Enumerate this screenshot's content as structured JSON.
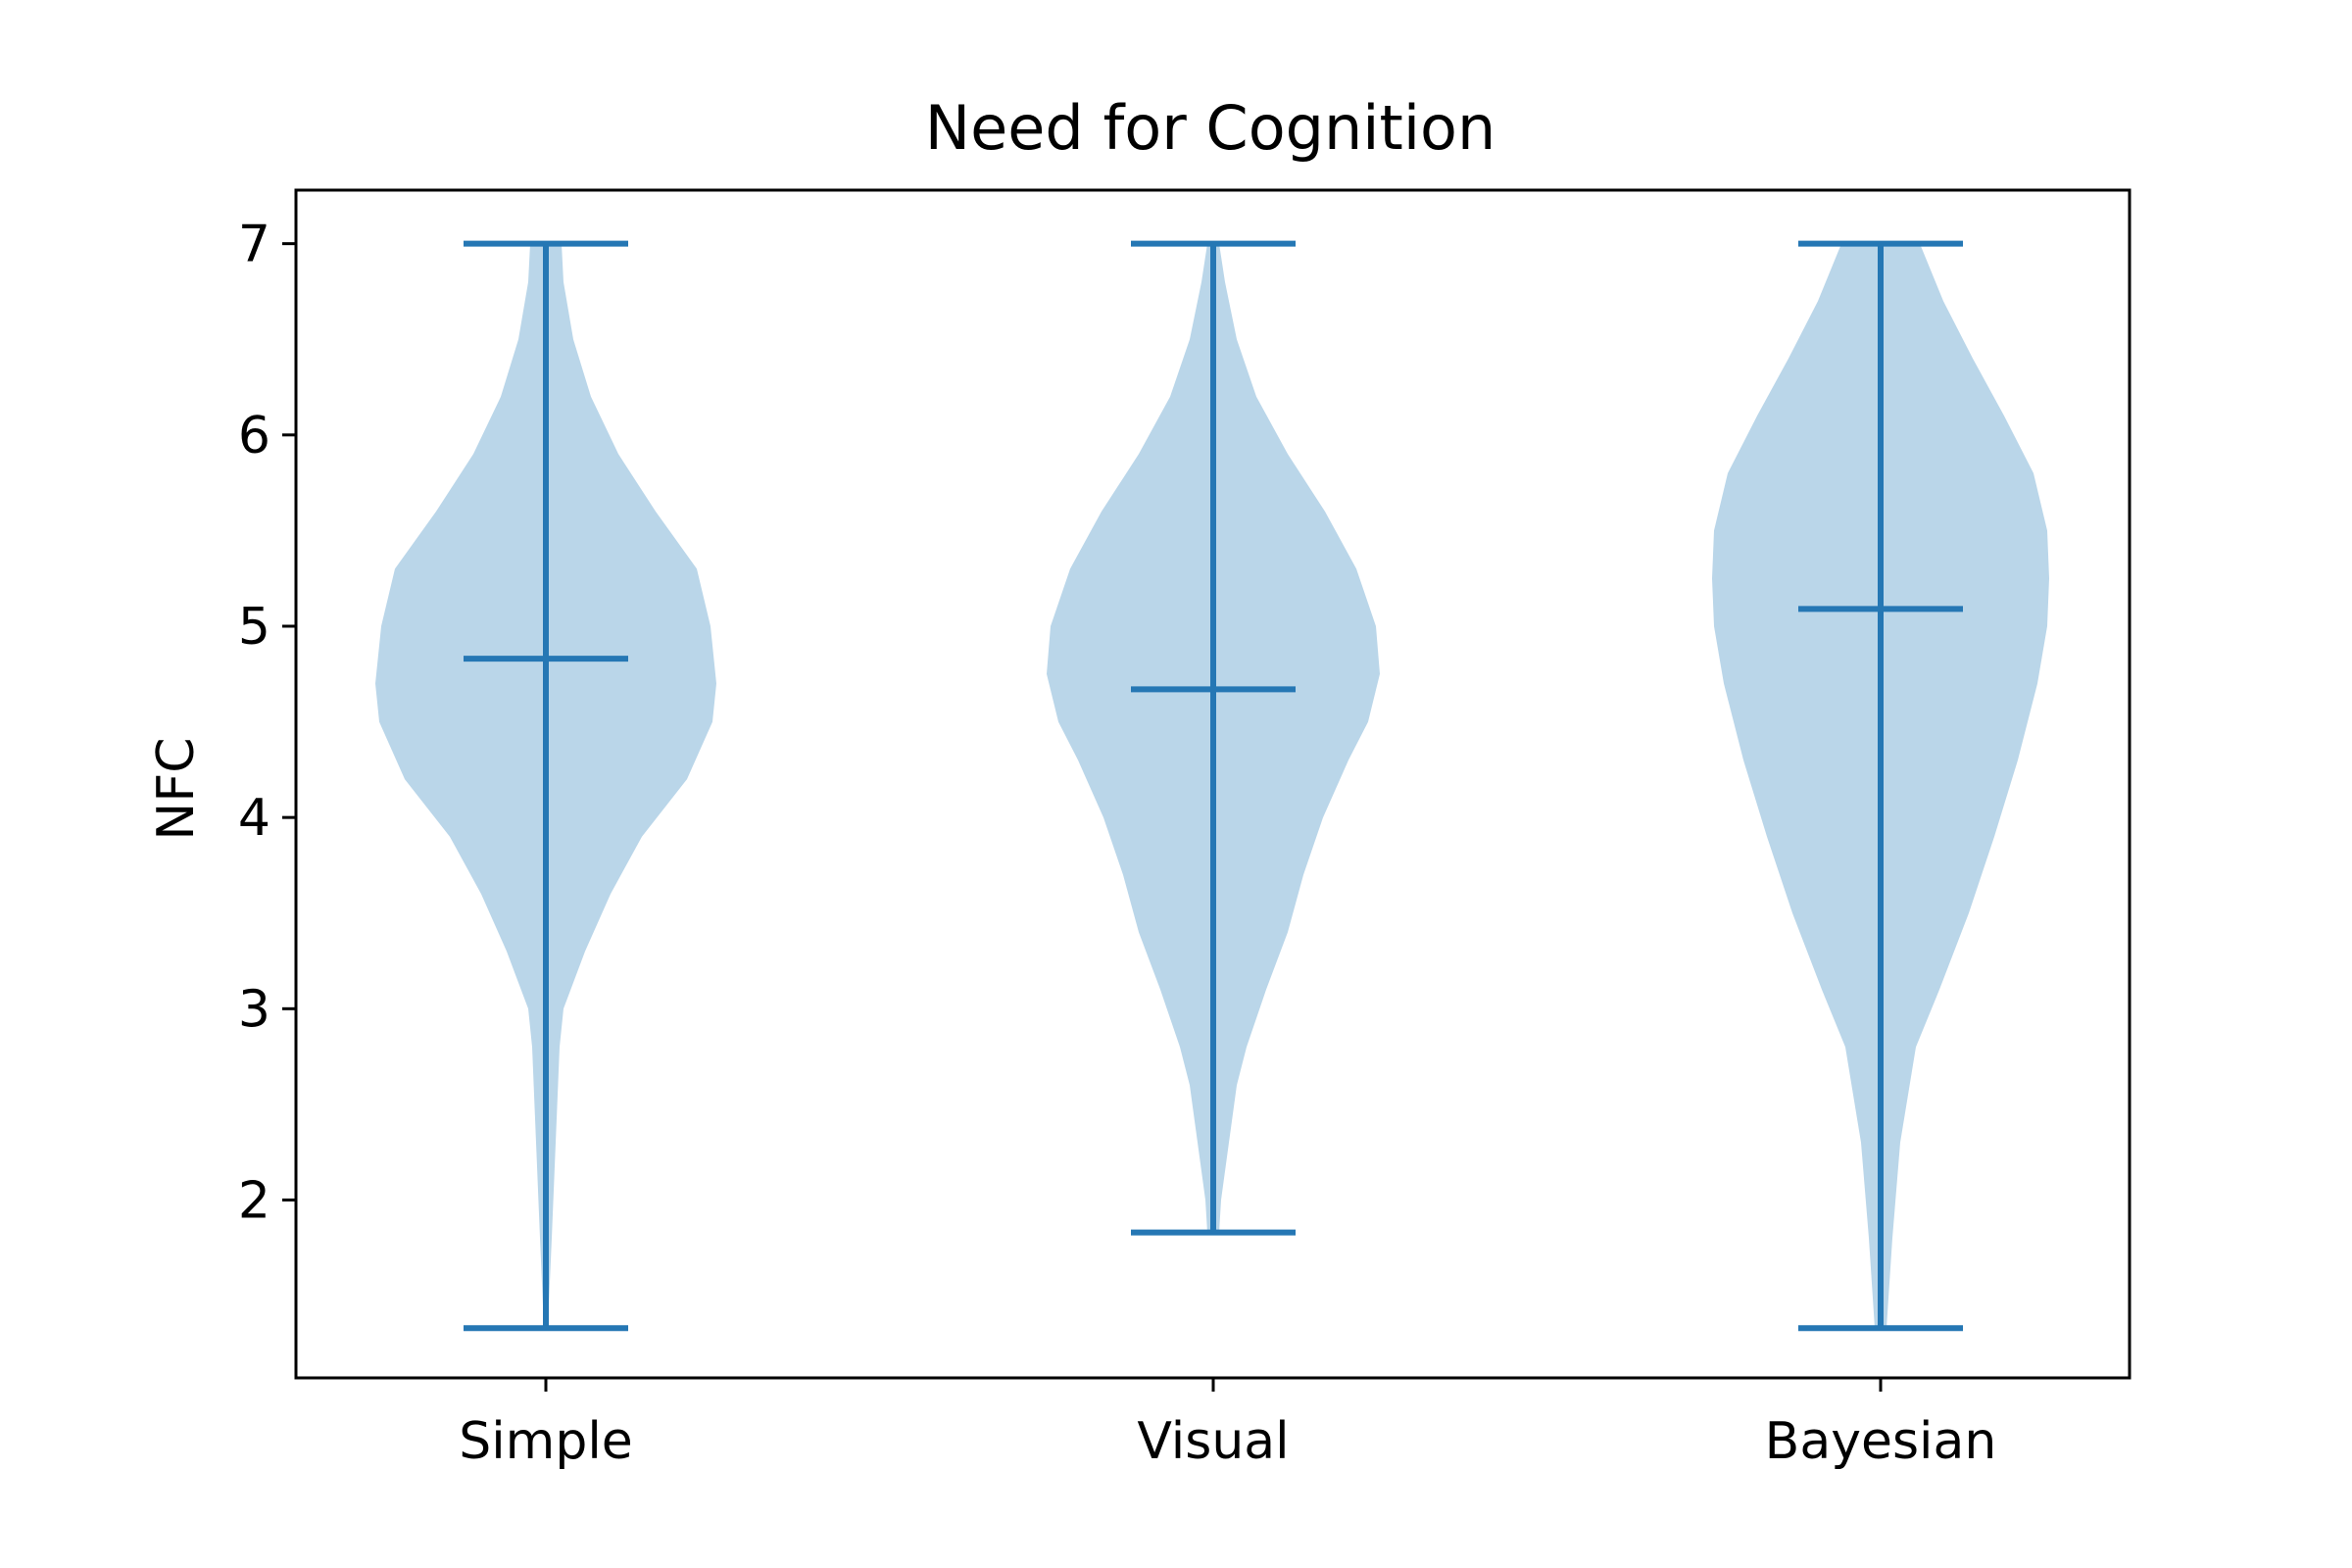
{
  "chart_data": {
    "type": "violin",
    "title": "Need for Cognition",
    "xlabel": "",
    "ylabel": "NFC",
    "categories": [
      "Simple",
      "Visual",
      "Bayesian"
    ],
    "ylim": [
      1.07,
      7.28
    ],
    "yticks": [
      2,
      3,
      4,
      5,
      6,
      7
    ],
    "grid": false,
    "colors": {
      "fill": "#bad6e9",
      "line": "#2577b4",
      "axis": "#000000"
    },
    "series": [
      {
        "category": "Simple",
        "min": 1.33,
        "max": 7.0,
        "mean": 4.83,
        "density": [
          [
            1.33,
            0.01
          ],
          [
            1.8,
            0.03
          ],
          [
            2.3,
            0.05
          ],
          [
            2.8,
            0.07
          ],
          [
            3.0,
            0.09
          ],
          [
            3.3,
            0.2
          ],
          [
            3.6,
            0.33
          ],
          [
            3.9,
            0.49
          ],
          [
            4.2,
            0.72
          ],
          [
            4.5,
            0.85
          ],
          [
            4.7,
            0.87
          ],
          [
            5.0,
            0.84
          ],
          [
            5.3,
            0.77
          ],
          [
            5.6,
            0.56
          ],
          [
            5.9,
            0.37
          ],
          [
            6.2,
            0.23
          ],
          [
            6.5,
            0.14
          ],
          [
            6.8,
            0.09
          ],
          [
            7.0,
            0.08
          ]
        ]
      },
      {
        "category": "Visual",
        "min": 1.83,
        "max": 7.0,
        "mean": 4.67,
        "density": [
          [
            1.83,
            0.03
          ],
          [
            2.0,
            0.04
          ],
          [
            2.3,
            0.08
          ],
          [
            2.6,
            0.12
          ],
          [
            2.8,
            0.17
          ],
          [
            3.1,
            0.27
          ],
          [
            3.4,
            0.38
          ],
          [
            3.7,
            0.46
          ],
          [
            4.0,
            0.56
          ],
          [
            4.3,
            0.69
          ],
          [
            4.5,
            0.79
          ],
          [
            4.75,
            0.85
          ],
          [
            5.0,
            0.83
          ],
          [
            5.3,
            0.73
          ],
          [
            5.6,
            0.57
          ],
          [
            5.9,
            0.38
          ],
          [
            6.2,
            0.22
          ],
          [
            6.5,
            0.12
          ],
          [
            6.8,
            0.06
          ],
          [
            7.0,
            0.03
          ]
        ]
      },
      {
        "category": "Bayesian",
        "min": 1.33,
        "max": 7.0,
        "mean": 5.09,
        "density": [
          [
            1.33,
            0.03
          ],
          [
            1.8,
            0.06
          ],
          [
            2.3,
            0.1
          ],
          [
            2.8,
            0.18
          ],
          [
            3.1,
            0.3
          ],
          [
            3.5,
            0.45
          ],
          [
            3.9,
            0.58
          ],
          [
            4.3,
            0.7
          ],
          [
            4.7,
            0.8
          ],
          [
            5.0,
            0.85
          ],
          [
            5.25,
            0.86
          ],
          [
            5.5,
            0.85
          ],
          [
            5.8,
            0.78
          ],
          [
            6.1,
            0.63
          ],
          [
            6.4,
            0.47
          ],
          [
            6.7,
            0.32
          ],
          [
            7.0,
            0.2
          ]
        ]
      }
    ]
  }
}
